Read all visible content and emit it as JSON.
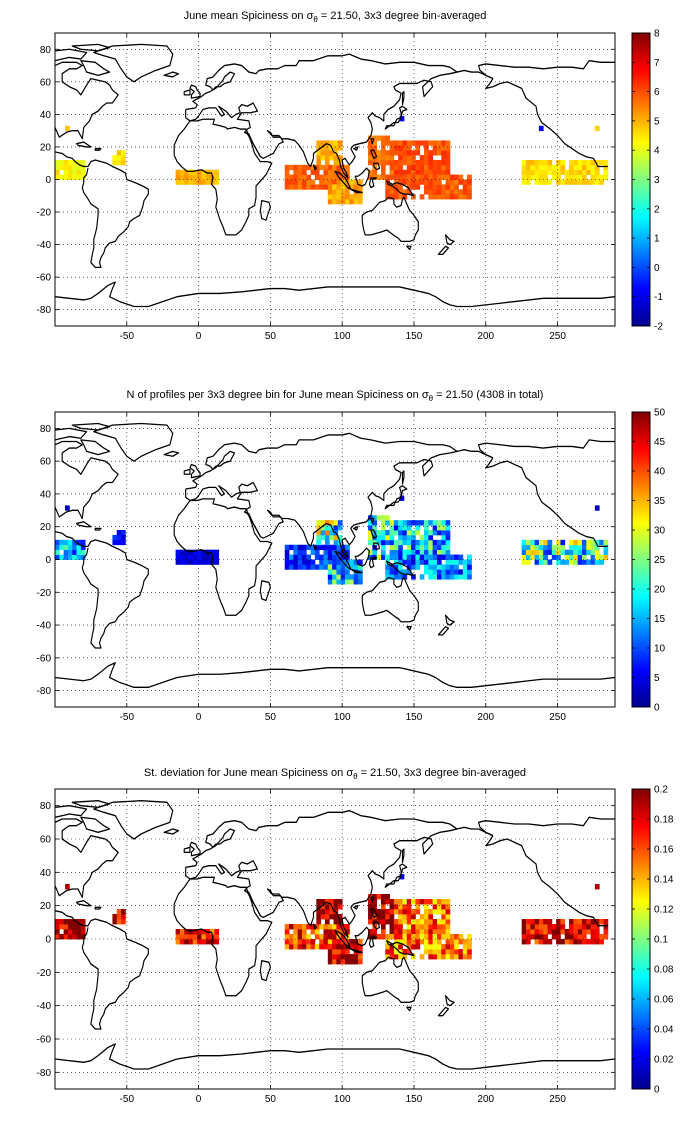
{
  "chart_data": [
    {
      "type": "heatmap",
      "title": "June mean Spiciness on σθ = 21.50, 3x3 degree bin-averaged",
      "title_parts": {
        "pre": "June mean Spiciness on σ",
        "sub": "θ",
        "post": " = 21.50, 3x3 degree bin-averaged"
      },
      "xlim": [
        -100,
        290
      ],
      "ylim": [
        -90,
        90
      ],
      "xticks": [
        -50,
        0,
        50,
        100,
        150,
        200,
        250
      ],
      "yticks": [
        -80,
        -60,
        -40,
        -20,
        0,
        20,
        40,
        60,
        80
      ],
      "grid": true,
      "colorbar": {
        "min": -2,
        "max": 8,
        "ticks": [
          -2,
          -1,
          0,
          1,
          2,
          3,
          4,
          5,
          6,
          7,
          8
        ]
      },
      "regions": [
        {
          "lon": [
            -100,
            -80
          ],
          "lat": [
            0,
            12
          ],
          "value": 4.3
        },
        {
          "lon": [
            -60,
            -52
          ],
          "lat": [
            9,
            18
          ],
          "value": 4.5
        },
        {
          "lon": [
            -16,
            12
          ],
          "lat": [
            -3,
            6
          ],
          "value": 5.0
        },
        {
          "lon": [
            60,
            105
          ],
          "lat": [
            -6,
            9
          ],
          "value": 5.8
        },
        {
          "lon": [
            82,
            100
          ],
          "lat": [
            9,
            24
          ],
          "value": 5.0
        },
        {
          "lon": [
            90,
            112
          ],
          "lat": [
            -15,
            0
          ],
          "value": 5.1
        },
        {
          "lon": [
            118,
            136
          ],
          "lat": [
            0,
            27
          ],
          "value": 5.7
        },
        {
          "lon": [
            136,
            175
          ],
          "lat": [
            3,
            24
          ],
          "value": 6.0
        },
        {
          "lon": [
            130,
            190
          ],
          "lat": [
            -12,
            3
          ],
          "value": 5.9
        },
        {
          "lon": [
            225,
            285
          ],
          "lat": [
            -3,
            12
          ],
          "value": 4.6
        }
      ],
      "points": [
        {
          "lon": -93,
          "lat": 30,
          "value": 4.8
        },
        {
          "lon": 140,
          "lat": 36,
          "value": -0.8
        },
        {
          "lon": 237,
          "lat": 30,
          "value": -0.8
        },
        {
          "lon": 276,
          "lat": 30,
          "value": 4.7
        }
      ]
    },
    {
      "type": "heatmap",
      "title": "N of profiles per 3x3 degree bin for June mean Spiciness on σθ = 21.50 (4308 in total)",
      "title_parts": {
        "pre": "N of profiles per 3x3 degree bin for June mean Spiciness on σ",
        "sub": "θ",
        "post": " = 21.50 (4308 in total)"
      },
      "xlim": [
        -100,
        290
      ],
      "ylim": [
        -90,
        90
      ],
      "xticks": [
        -50,
        0,
        50,
        100,
        150,
        200,
        250
      ],
      "yticks": [
        -80,
        -60,
        -40,
        -20,
        0,
        20,
        40,
        60,
        80
      ],
      "grid": true,
      "colorbar": {
        "min": 0,
        "max": 50,
        "ticks": [
          0,
          5,
          10,
          15,
          20,
          25,
          30,
          35,
          40,
          45,
          50
        ]
      },
      "regions": [
        {
          "lon": [
            -100,
            -80
          ],
          "lat": [
            0,
            12
          ],
          "value": 14
        },
        {
          "lon": [
            -60,
            -52
          ],
          "lat": [
            9,
            18
          ],
          "value": 6
        },
        {
          "lon": [
            -16,
            12
          ],
          "lat": [
            -3,
            6
          ],
          "value": 4
        },
        {
          "lon": [
            60,
            105
          ],
          "lat": [
            -6,
            9
          ],
          "value": 8
        },
        {
          "lon": [
            82,
            100
          ],
          "lat": [
            9,
            24
          ],
          "value": 22
        },
        {
          "lon": [
            90,
            112
          ],
          "lat": [
            -15,
            0
          ],
          "value": 16
        },
        {
          "lon": [
            118,
            136
          ],
          "lat": [
            0,
            27
          ],
          "value": 18
        },
        {
          "lon": [
            136,
            175
          ],
          "lat": [
            3,
            24
          ],
          "value": 16
        },
        {
          "lon": [
            130,
            190
          ],
          "lat": [
            -12,
            3
          ],
          "value": 12
        },
        {
          "lon": [
            225,
            285
          ],
          "lat": [
            -3,
            12
          ],
          "value": 20
        }
      ],
      "points": [
        {
          "lon": -93,
          "lat": 30,
          "value": 3
        },
        {
          "lon": 140,
          "lat": 36,
          "value": 5
        },
        {
          "lon": 276,
          "lat": 30,
          "value": 3
        }
      ]
    },
    {
      "type": "heatmap",
      "title": "St. deviation for June mean Spiciness on σθ = 21.50, 3x3 degree bin-averaged",
      "title_parts": {
        "pre": "St. deviation for June mean Spiciness on σ",
        "sub": "θ",
        "post": " = 21.50, 3x3 degree bin-averaged"
      },
      "xlim": [
        -100,
        290
      ],
      "ylim": [
        -90,
        90
      ],
      "xticks": [
        -50,
        0,
        50,
        100,
        150,
        200,
        250
      ],
      "yticks": [
        -80,
        -60,
        -40,
        -20,
        0,
        20,
        40,
        60,
        80
      ],
      "grid": true,
      "colorbar": {
        "min": 0,
        "max": 0.2,
        "ticks": [
          0,
          0.02,
          0.04,
          0.06,
          0.08,
          0.1,
          0.12,
          0.14,
          0.16,
          0.18,
          0.2
        ]
      },
      "regions": [
        {
          "lon": [
            -100,
            -80
          ],
          "lat": [
            0,
            12
          ],
          "value": 0.19
        },
        {
          "lon": [
            -60,
            -52
          ],
          "lat": [
            9,
            18
          ],
          "value": 0.18
        },
        {
          "lon": [
            -16,
            12
          ],
          "lat": [
            -3,
            6
          ],
          "value": 0.17
        },
        {
          "lon": [
            60,
            105
          ],
          "lat": [
            -6,
            9
          ],
          "value": 0.16
        },
        {
          "lon": [
            82,
            100
          ],
          "lat": [
            9,
            24
          ],
          "value": 0.19
        },
        {
          "lon": [
            90,
            112
          ],
          "lat": [
            -15,
            0
          ],
          "value": 0.18
        },
        {
          "lon": [
            118,
            136
          ],
          "lat": [
            0,
            27
          ],
          "value": 0.19
        },
        {
          "lon": [
            136,
            175
          ],
          "lat": [
            3,
            24
          ],
          "value": 0.15
        },
        {
          "lon": [
            130,
            190
          ],
          "lat": [
            -12,
            3
          ],
          "value": 0.15
        },
        {
          "lon": [
            225,
            285
          ],
          "lat": [
            -3,
            12
          ],
          "value": 0.18
        }
      ],
      "points": [
        {
          "lon": -93,
          "lat": 30,
          "value": 0.19
        },
        {
          "lon": 140,
          "lat": 36,
          "value": 0.02
        },
        {
          "lon": 276,
          "lat": 30,
          "value": 0.19
        }
      ]
    }
  ]
}
